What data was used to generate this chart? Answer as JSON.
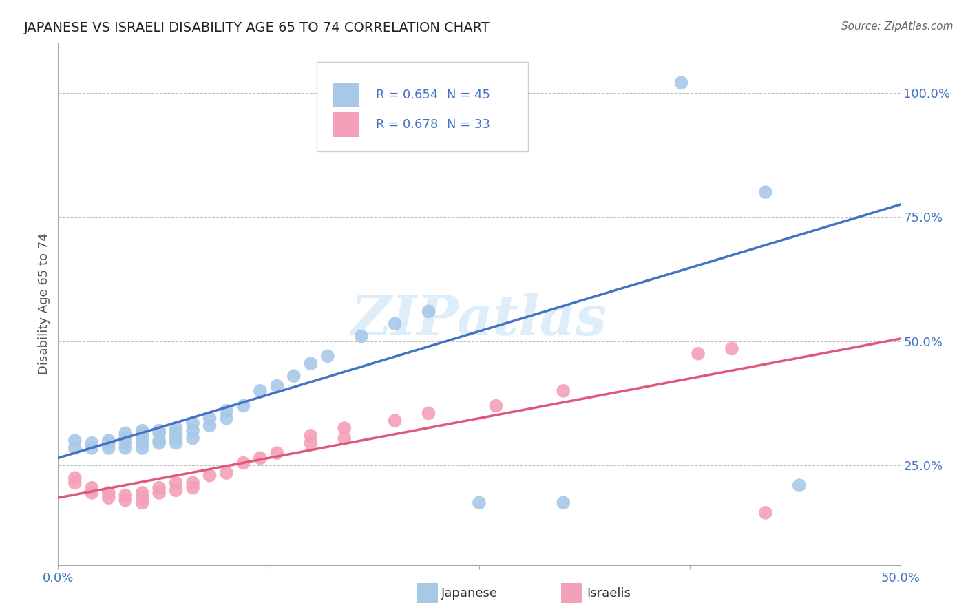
{
  "title": "JAPANESE VS ISRAELI DISABILITY AGE 65 TO 74 CORRELATION CHART",
  "source": "Source: ZipAtlas.com",
  "ylabel": "Disability Age 65 to 74",
  "xlim": [
    0.0,
    0.5
  ],
  "ylim": [
    0.05,
    1.1
  ],
  "xticks": [
    0.0,
    0.125,
    0.25,
    0.375,
    0.5
  ],
  "xtick_labels": [
    "0.0%",
    "",
    "",
    "",
    "50.0%"
  ],
  "ytick_positions": [
    0.25,
    0.5,
    0.75,
    1.0
  ],
  "ytick_labels": [
    "25.0%",
    "50.0%",
    "75.0%",
    "100.0%"
  ],
  "grid_color": "#c0c0c0",
  "background_color": "#ffffff",
  "japanese_color": "#a8c8e8",
  "israeli_color": "#f4a0b8",
  "japanese_line_color": "#4472c4",
  "israeli_line_color": "#e05878",
  "legend_R_japanese": "R = 0.654",
  "legend_N_japanese": "N = 45",
  "legend_R_israeli": "R = 0.678",
  "legend_N_israeli": "N = 33",
  "watermark": "ZIPatlas",
  "japanese_x": [
    0.01,
    0.01,
    0.02,
    0.02,
    0.03,
    0.03,
    0.03,
    0.04,
    0.04,
    0.04,
    0.04,
    0.05,
    0.05,
    0.05,
    0.05,
    0.05,
    0.06,
    0.06,
    0.06,
    0.06,
    0.07,
    0.07,
    0.07,
    0.07,
    0.08,
    0.08,
    0.08,
    0.09,
    0.09,
    0.1,
    0.1,
    0.11,
    0.12,
    0.13,
    0.14,
    0.15,
    0.16,
    0.18,
    0.2,
    0.22,
    0.25,
    0.3,
    0.37,
    0.42,
    0.44
  ],
  "japanese_y": [
    0.285,
    0.3,
    0.285,
    0.295,
    0.285,
    0.3,
    0.295,
    0.285,
    0.295,
    0.305,
    0.315,
    0.285,
    0.295,
    0.305,
    0.315,
    0.32,
    0.295,
    0.3,
    0.315,
    0.32,
    0.295,
    0.305,
    0.315,
    0.325,
    0.305,
    0.32,
    0.335,
    0.33,
    0.345,
    0.345,
    0.36,
    0.37,
    0.4,
    0.41,
    0.43,
    0.455,
    0.47,
    0.51,
    0.535,
    0.56,
    0.175,
    0.175,
    1.02,
    0.8,
    0.21
  ],
  "israeli_x": [
    0.01,
    0.01,
    0.02,
    0.02,
    0.03,
    0.03,
    0.04,
    0.04,
    0.05,
    0.05,
    0.05,
    0.06,
    0.06,
    0.07,
    0.07,
    0.08,
    0.08,
    0.09,
    0.1,
    0.11,
    0.12,
    0.13,
    0.15,
    0.15,
    0.17,
    0.17,
    0.2,
    0.22,
    0.26,
    0.3,
    0.38,
    0.4,
    0.42
  ],
  "israeli_y": [
    0.215,
    0.225,
    0.195,
    0.205,
    0.185,
    0.195,
    0.18,
    0.19,
    0.175,
    0.185,
    0.195,
    0.195,
    0.205,
    0.2,
    0.215,
    0.205,
    0.215,
    0.23,
    0.235,
    0.255,
    0.265,
    0.275,
    0.295,
    0.31,
    0.305,
    0.325,
    0.34,
    0.355,
    0.37,
    0.4,
    0.475,
    0.485,
    0.155
  ],
  "blue_line_x": [
    0.0,
    0.5
  ],
  "blue_line_y": [
    0.265,
    0.775
  ],
  "pink_line_x": [
    0.0,
    0.5
  ],
  "pink_line_y": [
    0.185,
    0.505
  ]
}
